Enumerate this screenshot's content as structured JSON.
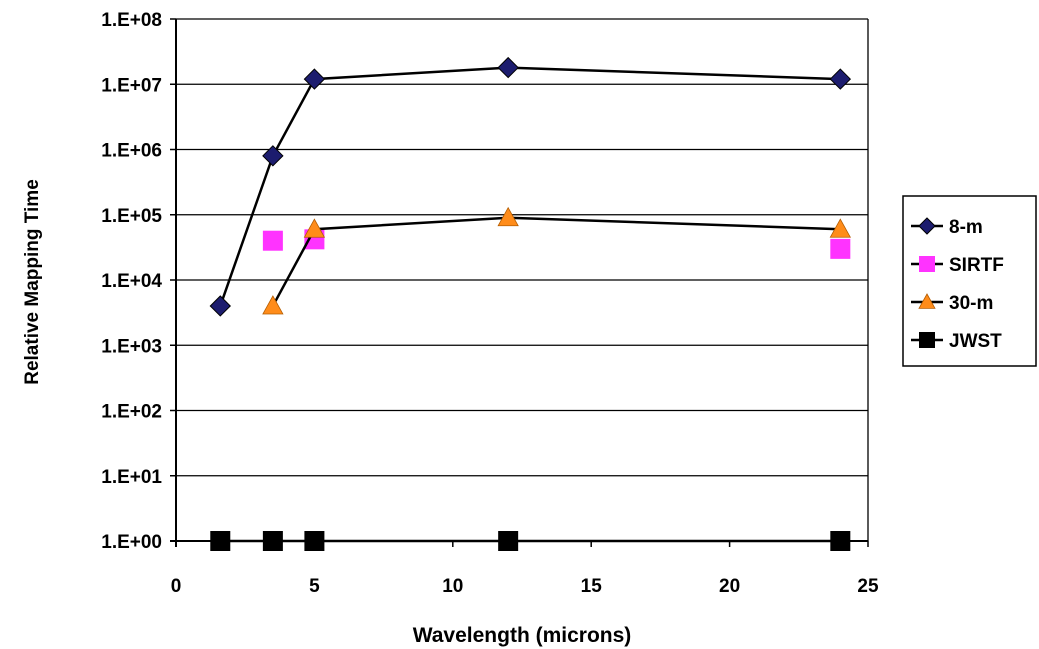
{
  "chart_data": {
    "type": "line",
    "title": "",
    "xlabel": "Wavelength (microns)",
    "ylabel": "Relative Mapping Time",
    "xlim": [
      0,
      25
    ],
    "x_ticks": [
      0,
      5,
      10,
      15,
      20,
      25
    ],
    "x_tick_labels": [
      "0",
      "5",
      "10",
      "15",
      "20",
      "25"
    ],
    "y_scale": "log",
    "ylim": [
      1,
      100000000
    ],
    "y_ticks": [
      1,
      10,
      100,
      1000,
      10000,
      100000,
      1000000,
      10000000,
      100000000
    ],
    "y_tick_labels": [
      "1.E+00",
      "1.E+01",
      "1.E+02",
      "1.E+03",
      "1.E+04",
      "1.E+05",
      "1.E+06",
      "1.E+07",
      "1.E+08"
    ],
    "grid": "horizontal major",
    "legend_position": "right",
    "series": [
      {
        "name": "8-m",
        "marker": "diamond",
        "color": "#1c1c6e",
        "line_color": "#000000",
        "x": [
          1.6,
          3.5,
          5,
          12,
          24
        ],
        "y": [
          4000,
          800000,
          12000000,
          18000000,
          12000000
        ]
      },
      {
        "name": "SIRTF",
        "marker": "square",
        "color": "#ff33ff",
        "line_color": "#000000",
        "x": [
          3.5,
          5,
          24
        ],
        "y": [
          40000,
          42000,
          30000
        ]
      },
      {
        "name": "30-m",
        "marker": "triangle",
        "color": "#ff8c1a",
        "line_color": "#000000",
        "x": [
          3.5,
          5,
          12,
          24
        ],
        "y": [
          4000,
          60000,
          90000,
          60000
        ]
      },
      {
        "name": "JWST",
        "marker": "square",
        "color": "#000000",
        "line_color": "#000000",
        "x": [
          1.6,
          3.5,
          5,
          12,
          24
        ],
        "y": [
          1,
          1,
          1,
          1,
          1
        ]
      }
    ]
  }
}
